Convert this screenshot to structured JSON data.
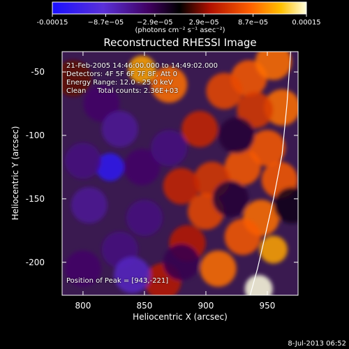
{
  "colorbar": {
    "ticks": [
      "-0.00015",
      "−8.7e−05",
      "−2.9e−05",
      "2.9e−05",
      "8.7e−05",
      "0.00015"
    ],
    "tick_values": [
      -0.00015,
      -8.7e-05,
      -2.9e-05,
      2.9e-05,
      8.7e-05,
      0.00015
    ],
    "unit_label": "(photons cm⁻² s⁻¹ asec⁻²)"
  },
  "info": {
    "line1": "21-Feb-2005 14:46:00.000 to 14:49:02.000",
    "line2": "Detectors: 4F 5F 6F 7F 8F, Att 0",
    "line3": "Energy Range: 12.0 - 25.0 keV",
    "line4": "Clean     Total counts: 2.36E+03",
    "peak": "Position of Peak = [943,-221]"
  },
  "footer": "8-Jul-2013 06:52",
  "chart_data": {
    "type": "heatmap",
    "title": "Reconstructed RHESSI Image",
    "xlabel": "Heliocentric X (arcsec)",
    "ylabel": "Heliocentric Y (arcsec)",
    "xlim": [
      783,
      975
    ],
    "ylim": [
      -226,
      -34
    ],
    "xticks": [
      800,
      850,
      900,
      950
    ],
    "yticks": [
      -50,
      -100,
      -150,
      -200
    ],
    "zlim": [
      -0.00015,
      0.00015
    ],
    "peak_position": [
      943,
      -221
    ],
    "limb_curve": {
      "x": [
        969,
        966,
        962,
        955,
        948,
        942,
        936
      ],
      "y": [
        -34,
        -75,
        -115,
        -150,
        -180,
        -205,
        -226
      ]
    },
    "features": [
      {
        "x": 870,
        "y": -60,
        "value": 9e-05
      },
      {
        "x": 848,
        "y": -48,
        "value": 0.00011
      },
      {
        "x": 935,
        "y": -55,
        "value": 8e-05
      },
      {
        "x": 915,
        "y": -65,
        "value": 7e-05
      },
      {
        "x": 955,
        "y": -42,
        "value": 9e-05
      },
      {
        "x": 962,
        "y": -78,
        "value": 9e-05
      },
      {
        "x": 940,
        "y": -80,
        "value": 6e-05
      },
      {
        "x": 895,
        "y": -95,
        "value": 5e-05
      },
      {
        "x": 950,
        "y": -110,
        "value": 8e-05
      },
      {
        "x": 930,
        "y": -125,
        "value": 8e-05
      },
      {
        "x": 905,
        "y": -135,
        "value": 6e-05
      },
      {
        "x": 880,
        "y": -140,
        "value": 5e-05
      },
      {
        "x": 960,
        "y": -135,
        "value": 8e-05
      },
      {
        "x": 945,
        "y": -165,
        "value": 9e-05
      },
      {
        "x": 900,
        "y": -160,
        "value": 7e-05
      },
      {
        "x": 955,
        "y": -190,
        "value": 0.00011
      },
      {
        "x": 930,
        "y": -180,
        "value": 8e-05
      },
      {
        "x": 910,
        "y": -205,
        "value": 9e-05
      },
      {
        "x": 943,
        "y": -221,
        "value": 0.00015
      },
      {
        "x": 865,
        "y": -215,
        "value": 4e-05
      },
      {
        "x": 885,
        "y": -185,
        "value": 4e-05
      },
      {
        "x": 792,
        "y": -55,
        "value": 2e-05
      },
      {
        "x": 815,
        "y": -75,
        "value": -4e-05
      },
      {
        "x": 830,
        "y": -95,
        "value": -6e-05
      },
      {
        "x": 822,
        "y": -125,
        "value": -0.00013
      },
      {
        "x": 800,
        "y": -120,
        "value": -5e-05
      },
      {
        "x": 805,
        "y": -155,
        "value": -6e-05
      },
      {
        "x": 848,
        "y": -125,
        "value": -4e-05
      },
      {
        "x": 870,
        "y": -110,
        "value": -5e-05
      },
      {
        "x": 850,
        "y": -165,
        "value": -5e-05
      },
      {
        "x": 830,
        "y": -190,
        "value": -5e-05
      },
      {
        "x": 840,
        "y": -210,
        "value": -8e-05
      },
      {
        "x": 800,
        "y": -205,
        "value": -4e-05
      },
      {
        "x": 880,
        "y": -200,
        "value": -3e-05
      },
      {
        "x": 920,
        "y": -150,
        "value": -2e-05
      },
      {
        "x": 925,
        "y": -100,
        "value": -2e-05
      },
      {
        "x": 970,
        "y": -155,
        "value": -1e-05
      }
    ]
  }
}
